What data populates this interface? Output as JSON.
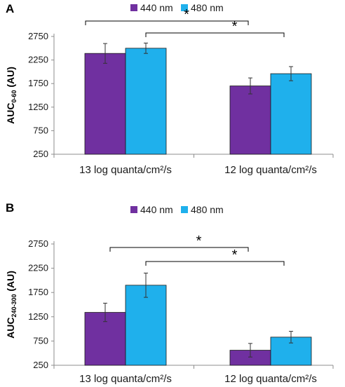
{
  "colors": {
    "series_440": "#7030a0",
    "series_480": "#1fb0ec",
    "axis": "#8c8c8c"
  },
  "chart_data": [
    {
      "type": "bar",
      "panel_label": "A",
      "ylabel_main": "AUC",
      "ylabel_sub": "0-60",
      "ylabel_unit": " (AU)",
      "categories": [
        "13 log quanta/cm²/s",
        "12 log quanta/cm²/s"
      ],
      "series": [
        {
          "name": "440 nm",
          "values": [
            2390,
            1700
          ],
          "errors": [
            210,
            170
          ]
        },
        {
          "name": "480 nm",
          "values": [
            2500,
            1960
          ],
          "errors": [
            110,
            150
          ]
        }
      ],
      "ylim": [
        250,
        2750
      ],
      "yticks": [
        "250",
        "750",
        "1250",
        "1750",
        "2250",
        "2750"
      ],
      "grid": false,
      "legend_position": "top-center",
      "significance": [
        {
          "from": "13 log 440 nm",
          "to": "12 log 440 nm",
          "symbol": "*"
        },
        {
          "from": "13 log 480 nm",
          "to": "12 log 480 nm",
          "symbol": "*"
        }
      ]
    },
    {
      "type": "bar",
      "panel_label": "B",
      "ylabel_main": "AUC",
      "ylabel_sub": "240-300",
      "ylabel_unit": " (AU)",
      "categories": [
        "13 log quanta/cm²/s",
        "12 log quanta/cm²/s"
      ],
      "series": [
        {
          "name": "440 nm",
          "values": [
            1340,
            560
          ],
          "errors": [
            190,
            140
          ]
        },
        {
          "name": "480 nm",
          "values": [
            1900,
            830
          ],
          "errors": [
            250,
            120
          ]
        }
      ],
      "ylim": [
        250,
        2750
      ],
      "yticks": [
        "250",
        "750",
        "1250",
        "1750",
        "2250",
        "2750"
      ],
      "grid": false,
      "legend_position": "top-center",
      "significance": [
        {
          "from": "13 log 440 nm",
          "to": "12 log 440 nm",
          "symbol": "*"
        },
        {
          "from": "13 log 480 nm",
          "to": "12 log 480 nm",
          "symbol": "*"
        }
      ]
    }
  ]
}
